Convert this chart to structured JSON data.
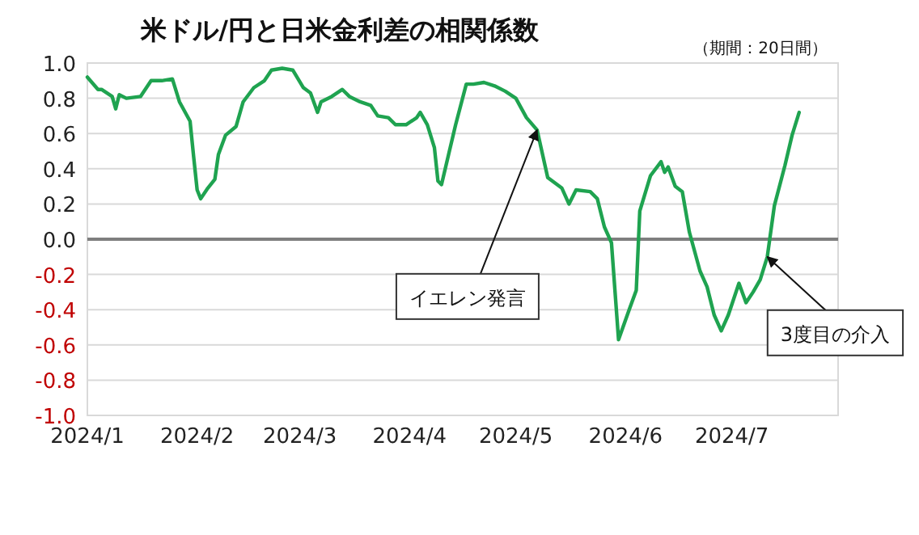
{
  "chart_data": {
    "type": "line",
    "title": "米ドル/円と日米金利差の相関係数",
    "subtitle": "（期間：20日間）",
    "x": [
      "2024-01-01",
      "2024-01-04",
      "2024-01-05",
      "2024-01-08",
      "2024-01-09",
      "2024-01-10",
      "2024-01-12",
      "2024-01-16",
      "2024-01-19",
      "2024-01-22",
      "2024-01-25",
      "2024-01-27",
      "2024-01-30",
      "2024-01-31",
      "2024-02-01",
      "2024-02-02",
      "2024-02-04",
      "2024-02-06",
      "2024-02-07",
      "2024-02-09",
      "2024-02-12",
      "2024-02-14",
      "2024-02-17",
      "2024-02-20",
      "2024-02-22",
      "2024-02-25",
      "2024-02-28",
      "2024-03-02",
      "2024-03-04",
      "2024-03-06",
      "2024-03-07",
      "2024-03-10",
      "2024-03-13",
      "2024-03-15",
      "2024-03-18",
      "2024-03-21",
      "2024-03-23",
      "2024-03-26",
      "2024-03-28",
      "2024-03-31",
      "2024-04-03",
      "2024-04-04",
      "2024-04-06",
      "2024-04-08",
      "2024-04-09",
      "2024-04-10",
      "2024-04-12",
      "2024-04-14",
      "2024-04-17",
      "2024-04-19",
      "2024-04-22",
      "2024-04-25",
      "2024-04-28",
      "2024-05-01",
      "2024-05-04",
      "2024-05-07",
      "2024-05-08",
      "2024-05-10",
      "2024-05-14",
      "2024-05-16",
      "2024-05-18",
      "2024-05-22",
      "2024-05-24",
      "2024-05-26",
      "2024-05-28",
      "2024-05-30",
      "2024-06-02",
      "2024-06-04",
      "2024-06-05",
      "2024-06-08",
      "2024-06-11",
      "2024-06-12",
      "2024-06-13",
      "2024-06-15",
      "2024-06-17",
      "2024-06-19",
      "2024-06-22",
      "2024-06-24",
      "2024-06-26",
      "2024-06-28",
      "2024-06-30",
      "2024-07-03",
      "2024-07-05",
      "2024-07-07",
      "2024-07-09",
      "2024-07-11",
      "2024-07-13",
      "2024-07-16",
      "2024-07-18",
      "2024-07-20"
    ],
    "series": [
      {
        "color": "#1fa350",
        "values": [
          0.92,
          0.85,
          0.85,
          0.81,
          0.74,
          0.82,
          0.8,
          0.81,
          0.9,
          0.9,
          0.91,
          0.78,
          0.67,
          0.47,
          0.28,
          0.23,
          0.29,
          0.34,
          0.48,
          0.59,
          0.64,
          0.78,
          0.86,
          0.9,
          0.96,
          0.97,
          0.96,
          0.86,
          0.83,
          0.72,
          0.78,
          0.81,
          0.85,
          0.81,
          0.78,
          0.76,
          0.7,
          0.69,
          0.65,
          0.65,
          0.69,
          0.72,
          0.65,
          0.52,
          0.33,
          0.31,
          0.48,
          0.65,
          0.88,
          0.88,
          0.89,
          0.87,
          0.84,
          0.8,
          0.69,
          0.62,
          0.53,
          0.35,
          0.29,
          0.2,
          0.28,
          0.27,
          0.23,
          0.07,
          -0.02,
          -0.57,
          -0.4,
          -0.29,
          0.16,
          0.36,
          0.44,
          0.38,
          0.41,
          0.3,
          0.27,
          0.04,
          -0.18,
          -0.27,
          -0.43,
          -0.52,
          -0.43,
          -0.25,
          -0.36,
          -0.3,
          -0.23,
          -0.1,
          0.19,
          0.42,
          0.59,
          0.72
        ]
      }
    ],
    "xlim": [
      "2024-01-01",
      "2024-07-31"
    ],
    "xticks": [
      {
        "value": "2024-01-01",
        "label": "2024/1"
      },
      {
        "value": "2024-02-01",
        "label": "2024/2"
      },
      {
        "value": "2024-03-01",
        "label": "2024/3"
      },
      {
        "value": "2024-04-01",
        "label": "2024/4"
      },
      {
        "value": "2024-05-01",
        "label": "2024/5"
      },
      {
        "value": "2024-06-01",
        "label": "2024/6"
      },
      {
        "value": "2024-07-01",
        "label": "2024/7"
      }
    ],
    "ylim": [
      -1,
      1
    ],
    "yticks": [
      {
        "value": -1,
        "label": "-1.0"
      },
      {
        "value": -0.8,
        "label": "-0.8"
      },
      {
        "value": -0.6,
        "label": "-0.6"
      },
      {
        "value": -0.4,
        "label": "-0.4"
      },
      {
        "value": -0.2,
        "label": "-0.2"
      },
      {
        "value": 0,
        "label": "0.0"
      },
      {
        "value": 0.2,
        "label": "0.2"
      },
      {
        "value": 0.4,
        "label": "0.4"
      },
      {
        "value": 0.6,
        "label": "0.6"
      },
      {
        "value": 0.8,
        "label": "0.8"
      },
      {
        "value": 1,
        "label": "1.0"
      }
    ],
    "grid": "y",
    "annotations": [
      {
        "text": "イエレン発言",
        "x": "2024-05-07",
        "y": 0.62
      },
      {
        "text": "3度目の介入",
        "x": "2024-07-11",
        "y": -0.1
      }
    ]
  }
}
